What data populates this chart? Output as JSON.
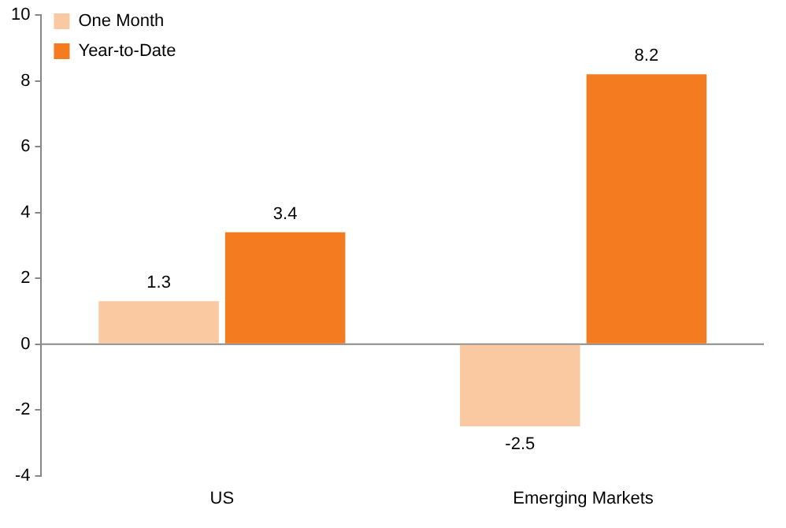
{
  "chart_data": {
    "type": "bar",
    "categories": [
      "US",
      "Emerging Markets"
    ],
    "series": [
      {
        "name": "One Month",
        "color": "#fac9a1",
        "values": [
          1.3,
          -2.5
        ]
      },
      {
        "name": "Year-to-Date",
        "color": "#f47b20",
        "values": [
          3.4,
          8.2
        ]
      }
    ],
    "ylim": [
      -4,
      10
    ],
    "yticks": [
      -4,
      -2,
      0,
      2,
      4,
      6,
      8,
      10
    ],
    "grid": false,
    "ref_lines": [
      {
        "axis": "y",
        "value": 0,
        "color": "#888888"
      }
    ],
    "legend": "top left",
    "data_labels": true
  }
}
